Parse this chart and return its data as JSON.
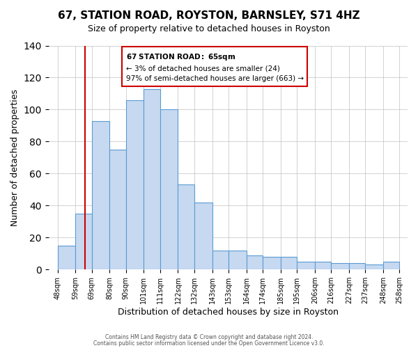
{
  "title": "67, STATION ROAD, ROYSTON, BARNSLEY, S71 4HZ",
  "subtitle": "Size of property relative to detached houses in Royston",
  "xlabel": "Distribution of detached houses by size in Royston",
  "ylabel": "Number of detached properties",
  "bin_edges": [
    48,
    59,
    69,
    80,
    90,
    101,
    111,
    122,
    132,
    143,
    153,
    164,
    174,
    185,
    195,
    206,
    216,
    227,
    237,
    248,
    258
  ],
  "bar_heights": [
    15,
    35,
    93,
    75,
    106,
    113,
    100,
    53,
    42,
    12,
    12,
    9,
    8,
    8,
    5,
    5,
    4,
    4,
    3,
    5
  ],
  "bar_color": "#c6d9f0",
  "bar_edge_color": "#5a9bd3",
  "property_line_x": 65,
  "property_line_color": "#cc0000",
  "ylim": [
    0,
    140
  ],
  "yticks": [
    0,
    20,
    40,
    60,
    80,
    100,
    120,
    140
  ],
  "xtick_labels": [
    "48sqm",
    "59sqm",
    "69sqm",
    "80sqm",
    "90sqm",
    "101sqm",
    "111sqm",
    "122sqm",
    "132sqm",
    "143sqm",
    "153sqm",
    "164sqm",
    "174sqm",
    "185sqm",
    "195sqm",
    "206sqm",
    "216sqm",
    "227sqm",
    "237sqm",
    "248sqm",
    "258sqm"
  ],
  "annotation_title": "67 STATION ROAD: 65sqm",
  "annotation_line1": "← 3% of detached houses are smaller (24)",
  "annotation_line2": "97% of semi-detached houses are larger (663) →",
  "annotation_box_color": "#ffffff",
  "annotation_box_edge_color": "#cc0000",
  "footer_line1": "Contains HM Land Registry data © Crown copyright and database right 2024.",
  "footer_line2": "Contains public sector information licensed under the Open Government Licence v3.0.",
  "background_color": "#ffffff",
  "grid_color": "#c0c0c0"
}
